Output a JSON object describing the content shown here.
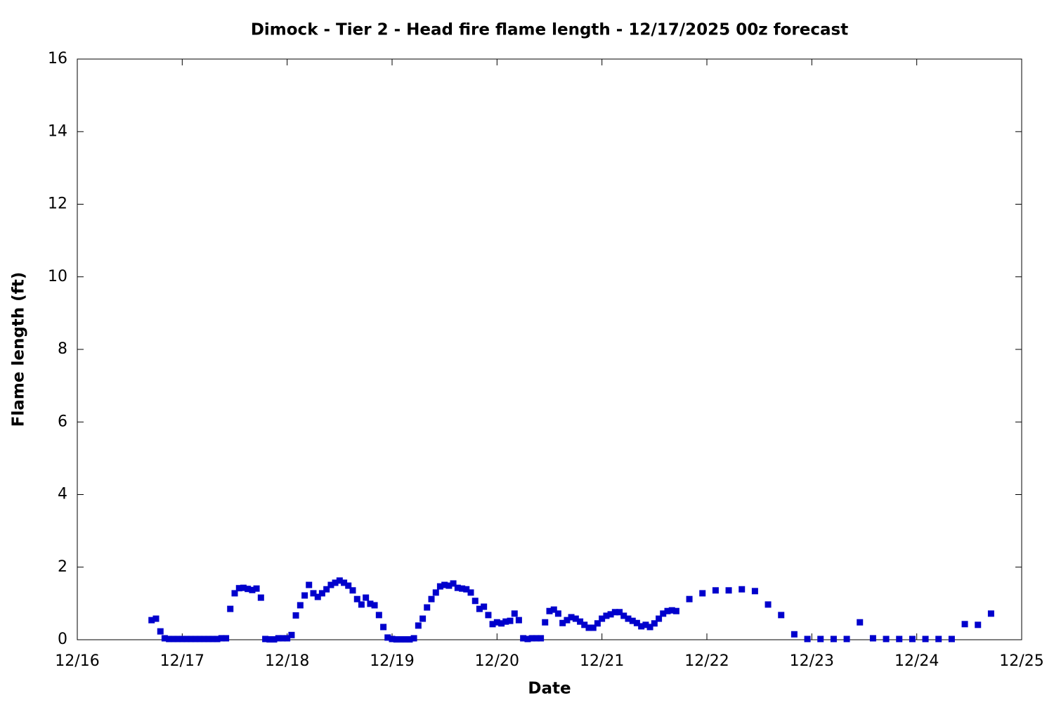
{
  "chart_data": {
    "type": "scatter",
    "title": "Dimock - Tier 2 - Head fire flame length - 12/17/2025 00z forecast",
    "xlabel": "Date",
    "ylabel": "Flame length (ft)",
    "color": "#0000cc",
    "x": [
      16.708,
      16.75,
      16.792,
      16.833,
      16.875,
      16.917,
      16.958,
      17,
      17.042,
      17.083,
      17.125,
      17.167,
      17.208,
      17.25,
      17.292,
      17.333,
      17.375,
      17.417,
      17.458,
      17.5,
      17.542,
      17.583,
      17.625,
      17.667,
      17.708,
      17.75,
      17.792,
      17.833,
      17.875,
      17.917,
      17.958,
      18,
      18.042,
      18.083,
      18.125,
      18.167,
      18.208,
      18.25,
      18.292,
      18.333,
      18.375,
      18.417,
      18.458,
      18.5,
      18.542,
      18.583,
      18.625,
      18.667,
      18.708,
      18.75,
      18.792,
      18.833,
      18.875,
      18.917,
      18.958,
      19,
      19.042,
      19.083,
      19.125,
      19.167,
      19.208,
      19.25,
      19.292,
      19.333,
      19.375,
      19.417,
      19.458,
      19.5,
      19.542,
      19.583,
      19.625,
      19.667,
      19.708,
      19.75,
      19.792,
      19.833,
      19.875,
      19.917,
      19.958,
      20,
      20.042,
      20.083,
      20.125,
      20.167,
      20.208,
      20.25,
      20.292,
      20.333,
      20.375,
      20.417,
      20.458,
      20.5,
      20.542,
      20.583,
      20.625,
      20.667,
      20.708,
      20.75,
      20.792,
      20.833,
      20.875,
      20.917,
      20.958,
      21,
      21.042,
      21.083,
      21.125,
      21.167,
      21.208,
      21.25,
      21.292,
      21.333,
      21.375,
      21.417,
      21.458,
      21.5,
      21.542,
      21.583,
      21.625,
      21.667,
      21.708,
      21.833,
      21.958,
      22.083,
      22.208,
      22.333,
      22.458,
      22.583,
      22.708,
      22.833,
      22.958,
      23.083,
      23.208,
      23.333,
      23.458,
      23.583,
      23.708,
      23.833,
      23.958,
      24.083,
      24.208,
      24.333,
      24.458,
      24.583,
      24.708
    ],
    "values": [
      0.54,
      0.58,
      0.23,
      0.04,
      0.02,
      0.02,
      0.02,
      0.02,
      0.02,
      0.02,
      0.02,
      0.02,
      0.02,
      0.02,
      0.02,
      0.02,
      0.04,
      0.04,
      0.85,
      1.28,
      1.42,
      1.43,
      1.4,
      1.37,
      1.41,
      1.16,
      0.02,
      0.01,
      0.01,
      0.04,
      0.04,
      0.04,
      0.13,
      0.67,
      0.95,
      1.22,
      1.51,
      1.28,
      1.18,
      1.28,
      1.39,
      1.51,
      1.57,
      1.63,
      1.57,
      1.49,
      1.36,
      1.12,
      0.97,
      1.16,
      0.99,
      0.95,
      0.68,
      0.35,
      0.06,
      0.02,
      0.01,
      0.01,
      0.01,
      0.01,
      0.04,
      0.39,
      0.58,
      0.89,
      1.12,
      1.3,
      1.47,
      1.51,
      1.49,
      1.55,
      1.43,
      1.41,
      1.39,
      1.3,
      1.07,
      0.85,
      0.91,
      0.68,
      0.43,
      0.48,
      0.45,
      0.5,
      0.52,
      0.72,
      0.54,
      0.04,
      0.02,
      0.04,
      0.04,
      0.04,
      0.48,
      0.79,
      0.83,
      0.72,
      0.46,
      0.54,
      0.62,
      0.58,
      0.5,
      0.41,
      0.33,
      0.33,
      0.45,
      0.58,
      0.66,
      0.7,
      0.76,
      0.76,
      0.66,
      0.58,
      0.52,
      0.46,
      0.37,
      0.41,
      0.35,
      0.45,
      0.58,
      0.72,
      0.79,
      0.81,
      0.79,
      1.12,
      1.28,
      1.36,
      1.36,
      1.39,
      1.34,
      0.97,
      0.68,
      0.15,
      0.02,
      0.02,
      0.02,
      0.02,
      0.48,
      0.04,
      0.02,
      0.02,
      0.02,
      0.02,
      0.02,
      0.02,
      0.43,
      0.41,
      0.72
    ],
    "xlim": [
      16,
      25
    ],
    "xticks": [
      {
        "value": 16,
        "label": "12/16"
      },
      {
        "value": 17,
        "label": "12/17"
      },
      {
        "value": 18,
        "label": "12/18"
      },
      {
        "value": 19,
        "label": "12/19"
      },
      {
        "value": 20,
        "label": "12/20"
      },
      {
        "value": 21,
        "label": "12/21"
      },
      {
        "value": 22,
        "label": "12/22"
      },
      {
        "value": 23,
        "label": "12/23"
      },
      {
        "value": 24,
        "label": "12/24"
      },
      {
        "value": 25,
        "label": "12/25"
      }
    ],
    "ylim": [
      0,
      16
    ],
    "yticks": [
      0,
      2,
      4,
      6,
      8,
      10,
      12,
      14,
      16
    ],
    "grid": false
  }
}
